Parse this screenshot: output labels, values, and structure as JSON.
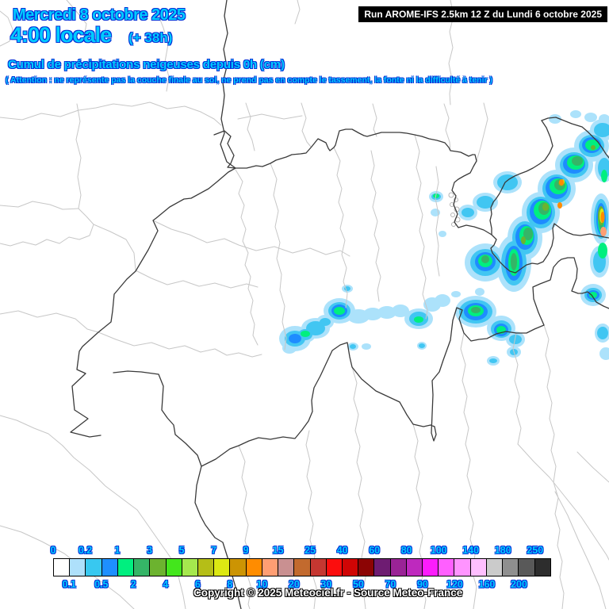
{
  "header": {
    "date": "Mercredi 8 octobre 2025",
    "time": "4:00 locale",
    "run_offset": "(+ 38h)",
    "title": "Cumul de précipitations neigeuses depuis 0h (cm)",
    "warning": "( Attention : ne représente pas la couche finale au sol, ne prend pas en compte le tassement, la fonte ni la difficulté à tenir )",
    "run_info": "Run AROME-IFS 2.5km 12 Z du Lundi 6 octobre 2025"
  },
  "footer": {
    "copyright": "Copyright © 2025 Meteociel.fr - Source Meteo-France"
  },
  "legend": {
    "unit": "cm",
    "top_labels": [
      "0",
      "0.2",
      "1",
      "3",
      "5",
      "7",
      "9",
      "15",
      "25",
      "40",
      "60",
      "80",
      "100",
      "140",
      "180",
      "250"
    ],
    "bottom_labels": [
      "0.1",
      "0.5",
      "2",
      "4",
      "6",
      "8",
      "10",
      "20",
      "30",
      "50",
      "70",
      "90",
      "120",
      "160",
      "200"
    ],
    "cell_colors": [
      "#FFFFFF",
      "#AEE0FB",
      "#38C8F0",
      "#1E8FFF",
      "#00EF7F",
      "#35B567",
      "#6CB32F",
      "#43E61C",
      "#A5E84E",
      "#B5BE17",
      "#DCE813",
      "#CC9403",
      "#FF8C00",
      "#FF9E73",
      "#C99091",
      "#C26A2E",
      "#C53731",
      "#FC0D0D",
      "#D00505",
      "#8C0404",
      "#6E1C72",
      "#9A2396",
      "#BE29BE",
      "#FC1CFC",
      "#FF5FFF",
      "#FF94FF",
      "#FFBFFF",
      "#CBCBCB",
      "#8F8F8F",
      "#595959",
      "#2D2D2D"
    ]
  },
  "map": {
    "precip_colors": {
      "p01": "#ACE2FB",
      "p02": "#41C6F2",
      "p05": "#1E8CFF",
      "p1": "#00EF7F",
      "p2": "#35B567",
      "p3": "#6CB32F",
      "p7": "#DCE813",
      "p9": "#FF8C00",
      "p10": "#FF9E73"
    },
    "border_colors": {
      "light": "#C7C7C7",
      "dark": "#3A3A3A",
      "detail": "#B5B5B5"
    },
    "text_colors": {
      "label_fill": "#00CCFF",
      "label_outline": "#0331D8",
      "run_bg": "#000000",
      "run_fg": "#FFFFFF"
    }
  }
}
